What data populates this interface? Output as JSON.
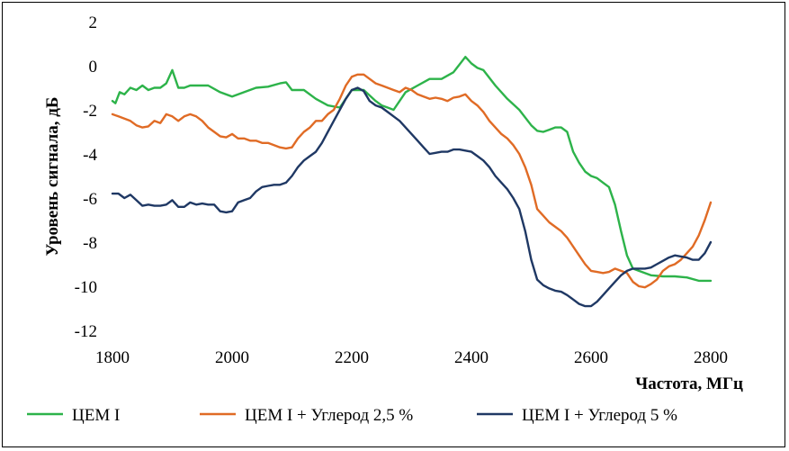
{
  "chart_data": {
    "type": "line",
    "title": "",
    "xlabel": "Частота, МГц",
    "ylabel": "Уровень сигнала, дБ",
    "xlim": [
      1800,
      2800
    ],
    "ylim": [
      -12,
      2
    ],
    "x_ticks": [
      "1800",
      "2000",
      "2200",
      "2400",
      "2600",
      "2800"
    ],
    "y_ticks": [
      "2",
      "0",
      "-2",
      "-4",
      "-6",
      "-8",
      "-10",
      "-12"
    ],
    "grid": false,
    "legend_position": "bottom",
    "series": [
      {
        "name": "ЦЕМ I",
        "color": "#2db34a",
        "points": [
          [
            1800,
            -1.6
          ],
          [
            1805,
            -1.7
          ],
          [
            1812,
            -1.2
          ],
          [
            1820,
            -1.3
          ],
          [
            1830,
            -1.0
          ],
          [
            1840,
            -1.1
          ],
          [
            1850,
            -0.9
          ],
          [
            1860,
            -1.1
          ],
          [
            1870,
            -1.0
          ],
          [
            1880,
            -1.0
          ],
          [
            1890,
            -0.8
          ],
          [
            1900,
            -0.2
          ],
          [
            1910,
            -1.0
          ],
          [
            1920,
            -1.0
          ],
          [
            1930,
            -0.9
          ],
          [
            1940,
            -0.9
          ],
          [
            1960,
            -0.9
          ],
          [
            1980,
            -1.2
          ],
          [
            2000,
            -1.4
          ],
          [
            2020,
            -1.2
          ],
          [
            2040,
            -1.0
          ],
          [
            2060,
            -0.95
          ],
          [
            2080,
            -0.8
          ],
          [
            2090,
            -0.75
          ],
          [
            2100,
            -1.1
          ],
          [
            2120,
            -1.1
          ],
          [
            2140,
            -1.5
          ],
          [
            2160,
            -1.8
          ],
          [
            2180,
            -1.9
          ],
          [
            2200,
            -1.1
          ],
          [
            2220,
            -1.1
          ],
          [
            2240,
            -1.6
          ],
          [
            2250,
            -1.8
          ],
          [
            2260,
            -1.9
          ],
          [
            2270,
            -2.0
          ],
          [
            2290,
            -1.2
          ],
          [
            2310,
            -0.9
          ],
          [
            2330,
            -0.6
          ],
          [
            2350,
            -0.6
          ],
          [
            2370,
            -0.3
          ],
          [
            2390,
            0.4
          ],
          [
            2400,
            0.1
          ],
          [
            2410,
            -0.1
          ],
          [
            2420,
            -0.2
          ],
          [
            2440,
            -0.9
          ],
          [
            2460,
            -1.5
          ],
          [
            2480,
            -2.0
          ],
          [
            2500,
            -2.7
          ],
          [
            2510,
            -2.95
          ],
          [
            2520,
            -3.0
          ],
          [
            2530,
            -2.9
          ],
          [
            2540,
            -2.8
          ],
          [
            2550,
            -2.8
          ],
          [
            2560,
            -3.0
          ],
          [
            2570,
            -3.9
          ],
          [
            2580,
            -4.4
          ],
          [
            2590,
            -4.8
          ],
          [
            2600,
            -5.0
          ],
          [
            2610,
            -5.1
          ],
          [
            2620,
            -5.3
          ],
          [
            2630,
            -5.5
          ],
          [
            2640,
            -6.3
          ],
          [
            2650,
            -7.5
          ],
          [
            2660,
            -8.6
          ],
          [
            2670,
            -9.2
          ],
          [
            2680,
            -9.3
          ],
          [
            2700,
            -9.5
          ],
          [
            2720,
            -9.55
          ],
          [
            2740,
            -9.55
          ],
          [
            2760,
            -9.6
          ],
          [
            2780,
            -9.75
          ],
          [
            2800,
            -9.75
          ]
        ]
      },
      {
        "name": "ЦЕМ I + Углерод 2,5 %",
        "color": "#e06b25",
        "points": [
          [
            1800,
            -2.2
          ],
          [
            1810,
            -2.3
          ],
          [
            1830,
            -2.5
          ],
          [
            1840,
            -2.7
          ],
          [
            1850,
            -2.8
          ],
          [
            1860,
            -2.75
          ],
          [
            1870,
            -2.5
          ],
          [
            1880,
            -2.6
          ],
          [
            1890,
            -2.2
          ],
          [
            1900,
            -2.3
          ],
          [
            1910,
            -2.5
          ],
          [
            1920,
            -2.3
          ],
          [
            1930,
            -2.2
          ],
          [
            1940,
            -2.3
          ],
          [
            1950,
            -2.5
          ],
          [
            1960,
            -2.8
          ],
          [
            1970,
            -3.0
          ],
          [
            1980,
            -3.2
          ],
          [
            1990,
            -3.25
          ],
          [
            2000,
            -3.1
          ],
          [
            2010,
            -3.3
          ],
          [
            2020,
            -3.3
          ],
          [
            2030,
            -3.4
          ],
          [
            2040,
            -3.4
          ],
          [
            2050,
            -3.5
          ],
          [
            2060,
            -3.5
          ],
          [
            2070,
            -3.6
          ],
          [
            2080,
            -3.7
          ],
          [
            2090,
            -3.75
          ],
          [
            2100,
            -3.7
          ],
          [
            2110,
            -3.3
          ],
          [
            2120,
            -3.0
          ],
          [
            2130,
            -2.8
          ],
          [
            2140,
            -2.5
          ],
          [
            2150,
            -2.5
          ],
          [
            2160,
            -2.2
          ],
          [
            2170,
            -2.0
          ],
          [
            2180,
            -1.5
          ],
          [
            2190,
            -0.9
          ],
          [
            2200,
            -0.5
          ],
          [
            2210,
            -0.4
          ],
          [
            2220,
            -0.4
          ],
          [
            2230,
            -0.6
          ],
          [
            2240,
            -0.8
          ],
          [
            2250,
            -0.9
          ],
          [
            2260,
            -1.0
          ],
          [
            2270,
            -1.1
          ],
          [
            2280,
            -1.2
          ],
          [
            2290,
            -1.0
          ],
          [
            2300,
            -1.1
          ],
          [
            2310,
            -1.3
          ],
          [
            2320,
            -1.4
          ],
          [
            2330,
            -1.5
          ],
          [
            2340,
            -1.45
          ],
          [
            2350,
            -1.5
          ],
          [
            2360,
            -1.6
          ],
          [
            2370,
            -1.45
          ],
          [
            2380,
            -1.4
          ],
          [
            2390,
            -1.3
          ],
          [
            2400,
            -1.6
          ],
          [
            2410,
            -1.8
          ],
          [
            2420,
            -2.1
          ],
          [
            2430,
            -2.5
          ],
          [
            2440,
            -2.8
          ],
          [
            2450,
            -3.1
          ],
          [
            2460,
            -3.3
          ],
          [
            2470,
            -3.6
          ],
          [
            2480,
            -4.0
          ],
          [
            2490,
            -4.6
          ],
          [
            2500,
            -5.4
          ],
          [
            2510,
            -6.5
          ],
          [
            2520,
            -6.8
          ],
          [
            2530,
            -7.1
          ],
          [
            2540,
            -7.3
          ],
          [
            2550,
            -7.5
          ],
          [
            2560,
            -7.8
          ],
          [
            2570,
            -8.2
          ],
          [
            2580,
            -8.6
          ],
          [
            2590,
            -9.0
          ],
          [
            2600,
            -9.3
          ],
          [
            2610,
            -9.35
          ],
          [
            2620,
            -9.4
          ],
          [
            2630,
            -9.35
          ],
          [
            2640,
            -9.2
          ],
          [
            2650,
            -9.3
          ],
          [
            2660,
            -9.4
          ],
          [
            2670,
            -9.8
          ],
          [
            2680,
            -10.0
          ],
          [
            2690,
            -10.05
          ],
          [
            2700,
            -9.9
          ],
          [
            2710,
            -9.7
          ],
          [
            2720,
            -9.3
          ],
          [
            2730,
            -9.1
          ],
          [
            2740,
            -9.0
          ],
          [
            2750,
            -8.8
          ],
          [
            2760,
            -8.5
          ],
          [
            2770,
            -8.2
          ],
          [
            2780,
            -7.7
          ],
          [
            2790,
            -7.0
          ],
          [
            2800,
            -6.2
          ]
        ]
      },
      {
        "name": "ЦЕМ I + Углерод 5 %",
        "color": "#1f3864",
        "points": [
          [
            1800,
            -5.8
          ],
          [
            1810,
            -5.8
          ],
          [
            1820,
            -6.0
          ],
          [
            1830,
            -5.85
          ],
          [
            1840,
            -6.1
          ],
          [
            1850,
            -6.35
          ],
          [
            1860,
            -6.3
          ],
          [
            1870,
            -6.35
          ],
          [
            1880,
            -6.35
          ],
          [
            1890,
            -6.3
          ],
          [
            1900,
            -6.1
          ],
          [
            1910,
            -6.4
          ],
          [
            1920,
            -6.4
          ],
          [
            1930,
            -6.2
          ],
          [
            1940,
            -6.3
          ],
          [
            1950,
            -6.25
          ],
          [
            1960,
            -6.3
          ],
          [
            1970,
            -6.3
          ],
          [
            1980,
            -6.6
          ],
          [
            1990,
            -6.65
          ],
          [
            2000,
            -6.6
          ],
          [
            2010,
            -6.2
          ],
          [
            2020,
            -6.1
          ],
          [
            2030,
            -6.0
          ],
          [
            2040,
            -5.7
          ],
          [
            2050,
            -5.5
          ],
          [
            2060,
            -5.45
          ],
          [
            2070,
            -5.4
          ],
          [
            2080,
            -5.4
          ],
          [
            2090,
            -5.3
          ],
          [
            2100,
            -5.0
          ],
          [
            2110,
            -4.6
          ],
          [
            2120,
            -4.3
          ],
          [
            2130,
            -4.1
          ],
          [
            2140,
            -3.9
          ],
          [
            2150,
            -3.5
          ],
          [
            2160,
            -3.0
          ],
          [
            2170,
            -2.5
          ],
          [
            2180,
            -2.0
          ],
          [
            2190,
            -1.5
          ],
          [
            2200,
            -1.1
          ],
          [
            2210,
            -1.0
          ],
          [
            2220,
            -1.15
          ],
          [
            2230,
            -1.6
          ],
          [
            2240,
            -1.8
          ],
          [
            2250,
            -1.9
          ],
          [
            2260,
            -2.1
          ],
          [
            2270,
            -2.3
          ],
          [
            2280,
            -2.5
          ],
          [
            2290,
            -2.8
          ],
          [
            2300,
            -3.1
          ],
          [
            2310,
            -3.4
          ],
          [
            2320,
            -3.7
          ],
          [
            2330,
            -4.0
          ],
          [
            2340,
            -3.95
          ],
          [
            2350,
            -3.9
          ],
          [
            2360,
            -3.9
          ],
          [
            2370,
            -3.8
          ],
          [
            2380,
            -3.8
          ],
          [
            2390,
            -3.85
          ],
          [
            2400,
            -3.9
          ],
          [
            2410,
            -4.1
          ],
          [
            2420,
            -4.3
          ],
          [
            2430,
            -4.6
          ],
          [
            2440,
            -5.0
          ],
          [
            2450,
            -5.3
          ],
          [
            2460,
            -5.6
          ],
          [
            2470,
            -6.0
          ],
          [
            2480,
            -6.5
          ],
          [
            2490,
            -7.5
          ],
          [
            2500,
            -8.8
          ],
          [
            2510,
            -9.7
          ],
          [
            2520,
            -9.95
          ],
          [
            2530,
            -10.1
          ],
          [
            2540,
            -10.2
          ],
          [
            2550,
            -10.25
          ],
          [
            2560,
            -10.4
          ],
          [
            2570,
            -10.6
          ],
          [
            2580,
            -10.8
          ],
          [
            2590,
            -10.9
          ],
          [
            2600,
            -10.9
          ],
          [
            2610,
            -10.7
          ],
          [
            2620,
            -10.4
          ],
          [
            2630,
            -10.1
          ],
          [
            2640,
            -9.8
          ],
          [
            2650,
            -9.5
          ],
          [
            2660,
            -9.3
          ],
          [
            2670,
            -9.2
          ],
          [
            2680,
            -9.2
          ],
          [
            2690,
            -9.2
          ],
          [
            2700,
            -9.15
          ],
          [
            2710,
            -9.0
          ],
          [
            2720,
            -8.85
          ],
          [
            2730,
            -8.7
          ],
          [
            2740,
            -8.6
          ],
          [
            2750,
            -8.65
          ],
          [
            2760,
            -8.7
          ],
          [
            2770,
            -8.8
          ],
          [
            2780,
            -8.8
          ],
          [
            2790,
            -8.5
          ],
          [
            2800,
            -8.0
          ]
        ]
      }
    ]
  }
}
